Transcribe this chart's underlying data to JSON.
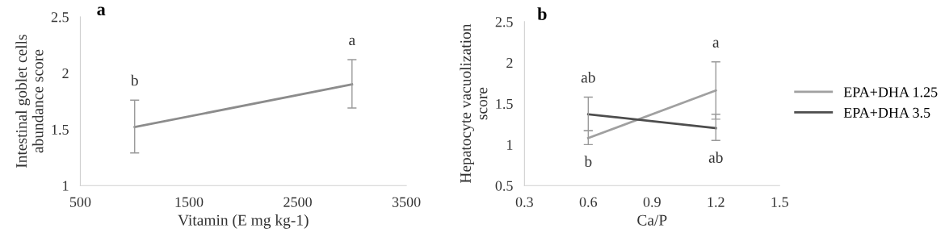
{
  "chart_data": [
    {
      "type": "line",
      "title": "a",
      "xlabel": "Vitamin (E mg kg-1)",
      "ylabel": "Intestinal goblet cells\nabundance score",
      "x": [
        1000,
        3000
      ],
      "series": [
        {
          "color": "#8c8c8c",
          "values": [
            1.52,
            1.9
          ],
          "errors": [
            [
              1.29,
              1.76
            ],
            [
              1.69,
              2.12
            ]
          ]
        }
      ],
      "xlim": [
        500,
        3500
      ],
      "xticks": [
        500,
        1500,
        2500,
        3500
      ],
      "ylim": [
        1,
        2.5
      ],
      "yticks": [
        1,
        1.5,
        2,
        2.5
      ],
      "grid": false,
      "legend": false,
      "marker": "none",
      "annotations": [
        "b",
        "a"
      ]
    },
    {
      "type": "line",
      "title": "b",
      "xlabel": "Ca/P",
      "ylabel": "Hepatocyte vacuolization\nscore",
      "x": [
        0.6,
        1.2
      ],
      "series": [
        {
          "name": "EPA+DHA 1.25",
          "color": "#a0a0a0",
          "values": [
            1.08,
            1.66
          ],
          "errors": [
            [
              1.0,
              1.17
            ],
            [
              1.31,
              2.01
            ]
          ]
        },
        {
          "name": "EPA+DHA 3.5",
          "color": "#4d4d4d",
          "values": [
            1.37,
            1.2
          ],
          "errors": [
            [
              1.17,
              1.58
            ],
            [
              1.05,
              1.37
            ]
          ]
        }
      ],
      "xlim": [
        0.3,
        1.5
      ],
      "xticks": [
        0.3,
        0.6,
        0.9,
        1.2,
        1.5
      ],
      "ylim": [
        0.5,
        2.5
      ],
      "yticks": [
        0.5,
        1,
        1.5,
        2,
        2.5
      ],
      "grid": false,
      "legend": "right",
      "marker": "none",
      "annotations": [
        "ab",
        "b",
        "a",
        "ab"
      ]
    }
  ]
}
